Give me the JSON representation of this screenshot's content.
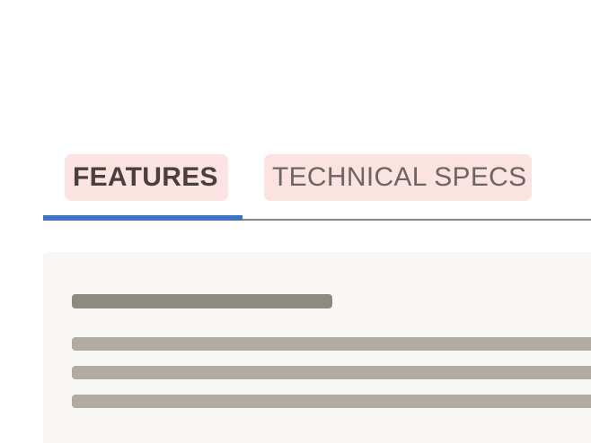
{
  "tabs": [
    {
      "label": "FEATURES",
      "selected": true
    },
    {
      "label": "TECHNICAL SPECS",
      "selected": false
    }
  ],
  "colors": {
    "tab_background": "#fbe3e1",
    "active_indicator": "#3f72c1",
    "underline": "#8c867a",
    "panel_background": "#f8f7f5",
    "skeleton_title": "#8e8a7f",
    "skeleton_line": "#b1ac9f"
  },
  "panel": {
    "state": "loading",
    "skeleton_lines": 3
  }
}
